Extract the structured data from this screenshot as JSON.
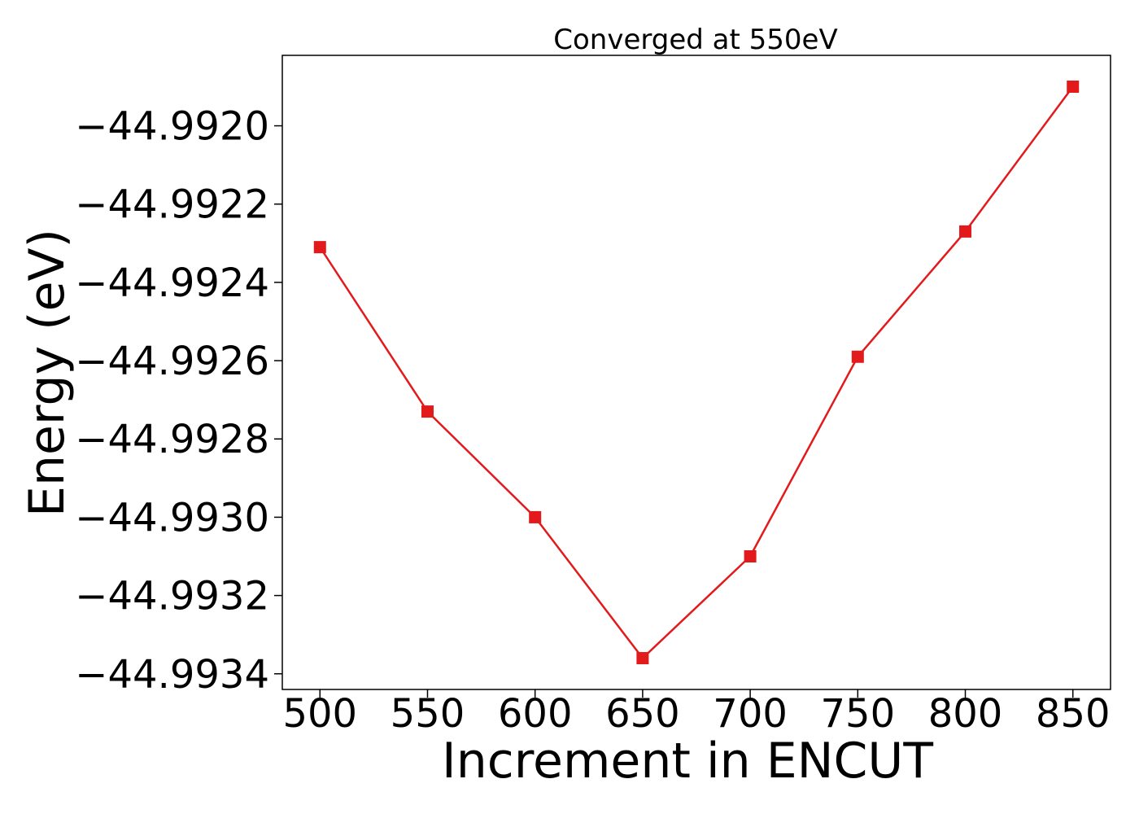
{
  "chart_data": {
    "type": "line",
    "title": "Converged at 550eV",
    "xlabel": "Increment in ENCUT",
    "ylabel": "Energy (eV)",
    "x": [
      500,
      550,
      600,
      650,
      700,
      750,
      800,
      850
    ],
    "series": [
      {
        "values": [
          -44.99231,
          -44.99273,
          -44.993,
          -44.99336,
          -44.9931,
          -44.99259,
          -44.99227,
          -44.9919
        ],
        "color": "#e31a1c",
        "marker": "square"
      }
    ],
    "xticks": [
      500,
      550,
      600,
      650,
      700,
      750,
      800,
      850
    ],
    "xtick_labels": [
      "500",
      "550",
      "600",
      "650",
      "700",
      "750",
      "800",
      "850"
    ],
    "yticks": [
      -44.9934,
      -44.9932,
      -44.993,
      -44.9928,
      -44.9926,
      -44.9924,
      -44.9922,
      -44.992
    ],
    "ytick_labels": [
      "−44.9934",
      "−44.9932",
      "−44.9930",
      "−44.9928",
      "−44.9926",
      "−44.9924",
      "−44.9922",
      "−44.9920"
    ],
    "xlim": [
      482.5,
      867.5
    ],
    "ylim": [
      -44.99344,
      -44.99182
    ],
    "grid": false,
    "legend": false
  }
}
